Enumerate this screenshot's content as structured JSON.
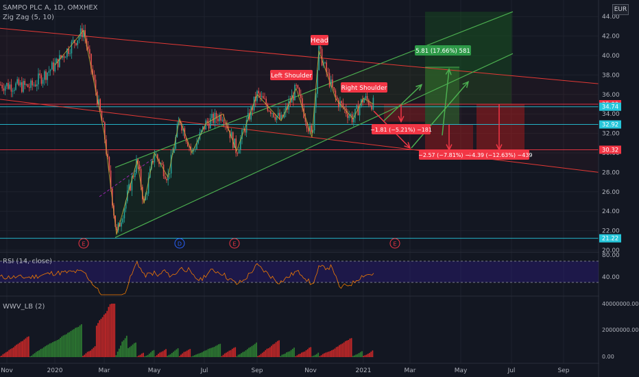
{
  "header": {
    "symbol": "SAMPO PLC A, 1D, OMXHEX",
    "zigzag": "Zig Zag (5, 10)",
    "currency": "EUR"
  },
  "colors": {
    "background": "#131722",
    "up_candle": "#26a69a",
    "down_candle": "#ef5350",
    "channel": "#4caf50",
    "resistance": "#e53935",
    "horizontal": "#00bcd4",
    "rsi_line": "#f57c00",
    "rsi_band": "#7e57c2"
  },
  "price_axis": [
    "44.00",
    "42.00",
    "40.00",
    "38.00",
    "36.00",
    "34.00",
    "32.00",
    "30.00",
    "28.00",
    "26.00",
    "24.00",
    "22.00",
    "20.00"
  ],
  "price_tags": [
    {
      "text": "35.00",
      "color": "#f23645",
      "price": 35.0
    },
    {
      "text": "34.74",
      "color": "#26c6da",
      "price": 34.74
    },
    {
      "text": "32.92",
      "color": "#26c6da",
      "price": 32.92
    },
    {
      "text": "30.32",
      "color": "#f23645",
      "price": 30.32
    },
    {
      "text": "21.22",
      "color": "#26c6da",
      "price": 21.22
    }
  ],
  "time_axis": [
    "Nov",
    "2020",
    "Mar",
    "May",
    "Jul",
    "Sep",
    "Nov",
    "2021",
    "Mar",
    "May",
    "Jul",
    "Sep"
  ],
  "labels": {
    "head": "Head",
    "left_shoulder": "Left Shoulder",
    "right_shoulder": "Right Shoulder"
  },
  "position_boxes": {
    "long": "5.81 (17.66%) 581",
    "short1": "−1.81 (−5.21%) −181",
    "short2": "−2.57 (−7.81%) −2",
    "short3": "−4.39 (−12.63%) −439"
  },
  "event_markers": [
    "E",
    "D",
    "E",
    "E"
  ],
  "rsi": {
    "label": "RSI (14, close)",
    "axis": [
      "80.00",
      "40.00"
    ]
  },
  "wwv": {
    "label": "WWV_LB (2)",
    "axis": [
      "40000000.00",
      "20000000.00",
      "0.00"
    ]
  }
}
